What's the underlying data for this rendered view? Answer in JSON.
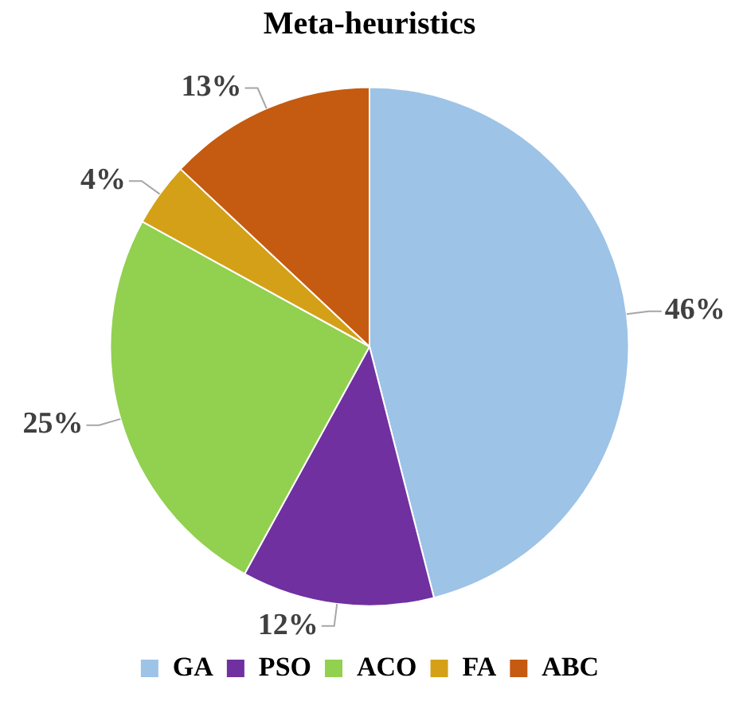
{
  "chart_data": {
    "type": "pie",
    "title": "Meta-heuristics",
    "categories": [
      "GA",
      "PSO",
      "ACO",
      "FA",
      "ABC"
    ],
    "values": [
      46,
      12,
      25,
      4,
      13
    ],
    "value_labels": [
      "46%",
      "12%",
      "25%",
      "4%",
      "13%"
    ],
    "colors": [
      "#9dc3e6",
      "#7030a0",
      "#92d050",
      "#d4a017",
      "#c55a11"
    ],
    "legend": "bottom"
  }
}
